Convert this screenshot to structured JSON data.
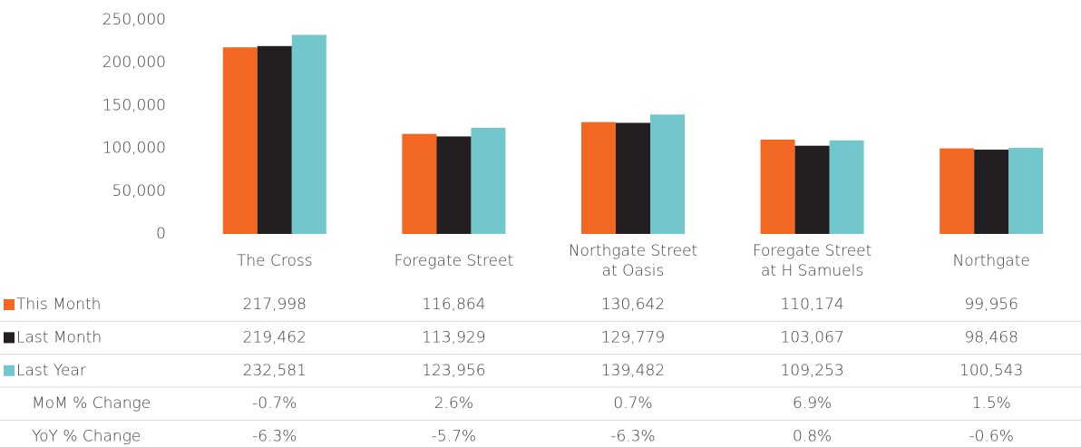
{
  "chart_data": {
    "type": "bar",
    "categories": [
      "The Cross",
      "Foregate Street",
      "Northgate Street\nat Oasis",
      "Foregate Street\nat H Samuels",
      "Northgate"
    ],
    "series": [
      {
        "name": "This Month",
        "color": "#f26722",
        "values": [
          217998,
          116864,
          130642,
          110174,
          99956
        ],
        "value_labels": [
          "217,998",
          "116,864",
          "130,642",
          "110,174",
          "99,956"
        ]
      },
      {
        "name": "Last Month",
        "color": "#231f20",
        "values": [
          219462,
          113929,
          129779,
          103067,
          98468
        ],
        "value_labels": [
          "219,462",
          "113,929",
          "129,779",
          "103,067",
          "98,468"
        ]
      },
      {
        "name": "Last Year",
        "color": "#72c7cc",
        "values": [
          232581,
          123956,
          139482,
          109253,
          100543
        ],
        "value_labels": [
          "232,581",
          "123,956",
          "139,482",
          "109,253",
          "100,543"
        ]
      }
    ],
    "table_rows": [
      {
        "name": "MoM % Change",
        "labels": [
          "-0.7%",
          "2.6%",
          "0.7%",
          "6.9%",
          "1.5%"
        ]
      },
      {
        "name": "YoY % Change",
        "labels": [
          "-6.3%",
          "-5.7%",
          "-6.3%",
          "0.8%",
          "-0.6%"
        ]
      }
    ],
    "ylim": [
      0,
      250000
    ],
    "yticks": [
      0,
      {
        "value": 50000,
        "label": "50,000"
      },
      {
        "value": 100000,
        "label": "100,000"
      },
      {
        "value": 150000,
        "label": "150,000"
      },
      {
        "value": 200000,
        "label": "200,000"
      },
      {
        "value": 250000,
        "label": "250,000"
      }
    ],
    "grid": false
  }
}
